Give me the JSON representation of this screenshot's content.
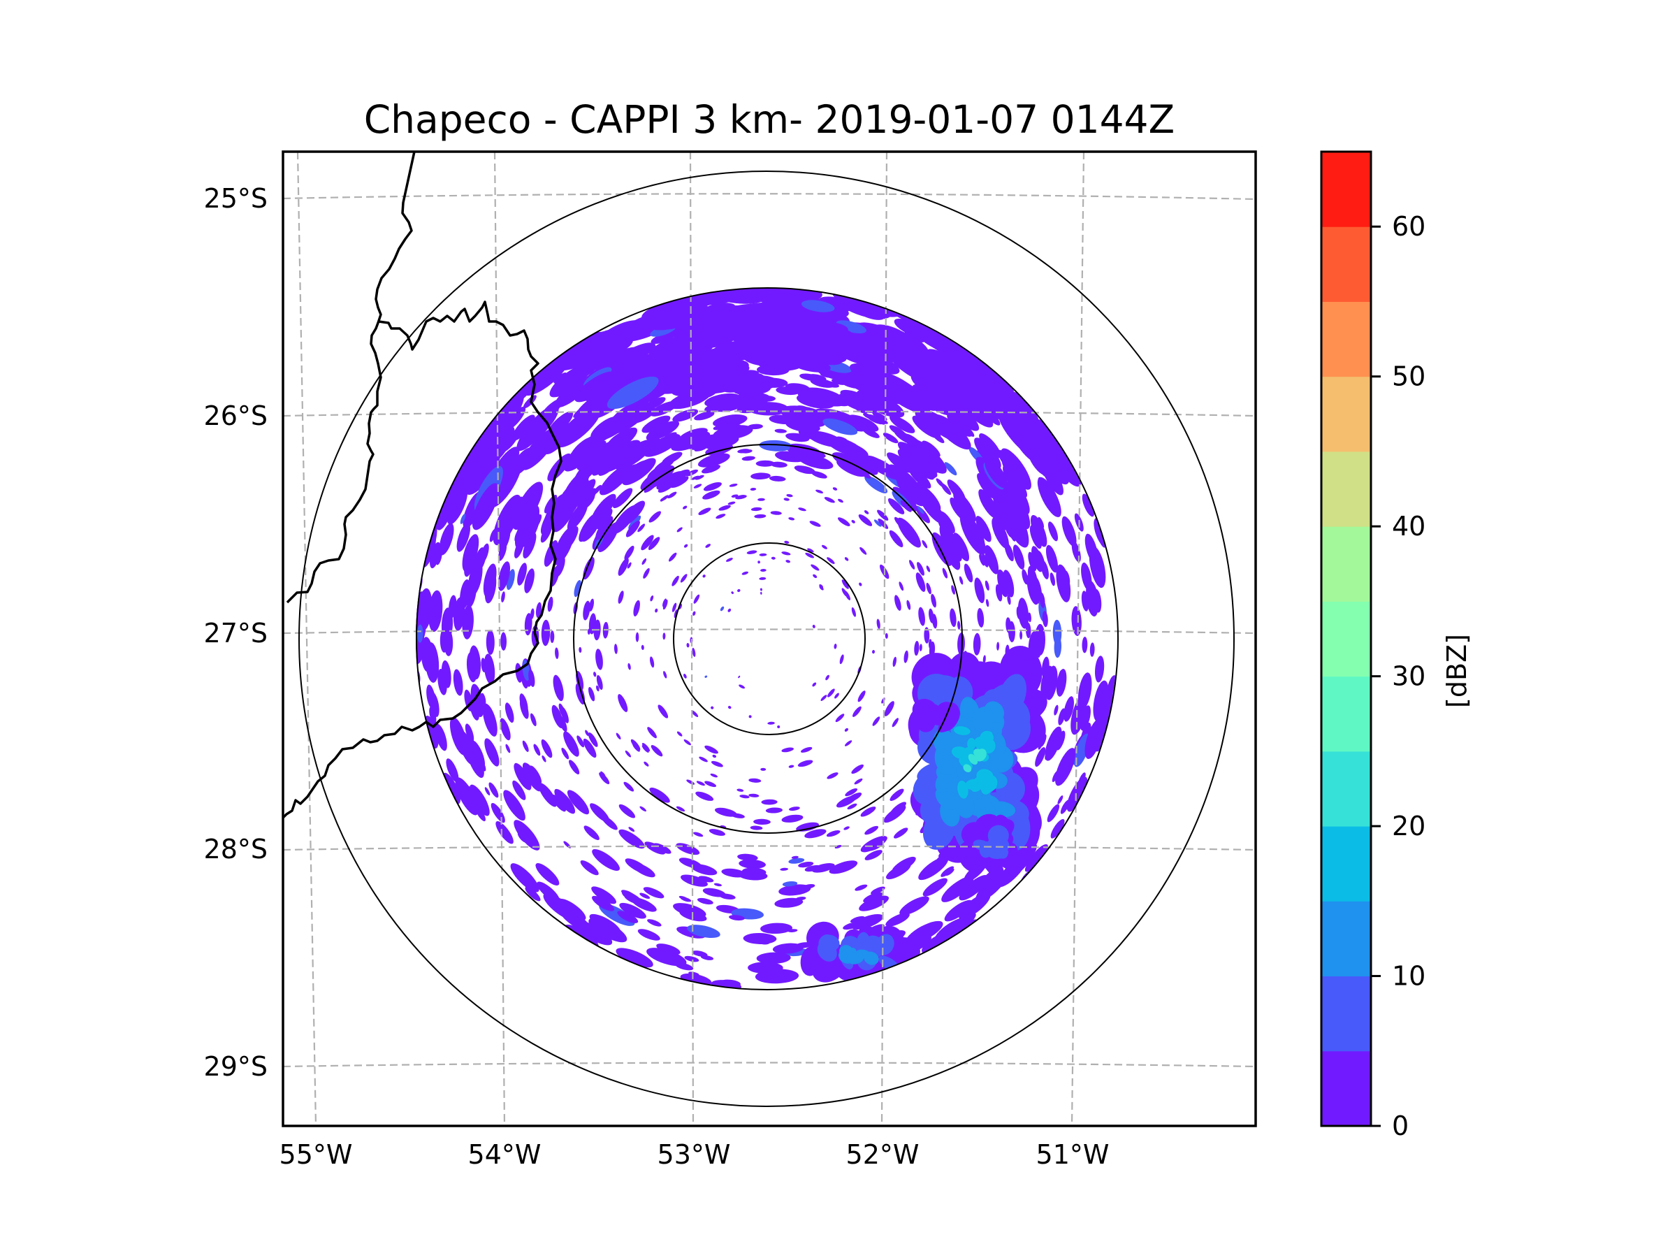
{
  "chart_data": {
    "type": "heatmap",
    "title": "Chapeco - CAPPI 3 km- 2019-01-07 0144Z",
    "xlabel": "",
    "ylabel": "",
    "x_ticks": [
      "55°W",
      "54°W",
      "53°W",
      "52°W",
      "51°W"
    ],
    "x_tick_values": [
      -55,
      -54,
      -53,
      -52,
      -51
    ],
    "y_ticks": [
      "25°S",
      "26°S",
      "27°S",
      "28°S",
      "29°S"
    ],
    "y_tick_values": [
      -25,
      -26,
      -27,
      -28,
      -29
    ],
    "xlim": [
      -55.2,
      -50.1
    ],
    "ylim": [
      -29.3,
      -24.8
    ],
    "grid": true,
    "radar_center": {
      "lon": -52.6,
      "lat": -27.02
    },
    "range_rings": 4,
    "colorbar": {
      "label": "[dBZ]",
      "ticks": [
        "0",
        "10",
        "20",
        "30",
        "40",
        "50",
        "60"
      ],
      "tick_values": [
        0,
        10,
        20,
        30,
        40,
        50,
        60
      ],
      "range": [
        0,
        65
      ],
      "levels": [
        0,
        5,
        10,
        15,
        20,
        25,
        30,
        35,
        40,
        45,
        50,
        55,
        60,
        65
      ],
      "colors": [
        "#721aff",
        "#485afa",
        "#1f91ee",
        "#0bbde6",
        "#36e2d7",
        "#5ff8c4",
        "#84ffb0",
        "#a3f89a",
        "#d0e086",
        "#f4be6e",
        "#ff9050",
        "#ff5b32",
        "#ff1c12"
      ]
    },
    "echo_regions": [
      {
        "name": "widespread weak echoes",
        "dbz_range": [
          0,
          5
        ],
        "location": "annulus around radar, densest north"
      },
      {
        "name": "convective cell east-southeast",
        "dbz_range": [
          0,
          25
        ],
        "peak_lon": -51.6,
        "peak_lat": -27.8
      },
      {
        "name": "cell south",
        "dbz_range": [
          0,
          15
        ],
        "peak_lon": -52.0,
        "peak_lat": -28.5
      }
    ]
  }
}
